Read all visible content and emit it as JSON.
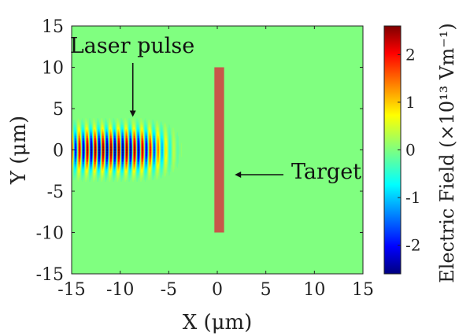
{
  "chart_data": {
    "type": "heatmap",
    "title": "",
    "xlabel": "X (μm)",
    "ylabel": "Y (μm)",
    "xlim": [
      -15,
      15
    ],
    "ylim": [
      -15,
      15
    ],
    "xticks": [
      -15,
      -10,
      -5,
      0,
      5,
      10,
      15
    ],
    "yticks": [
      -15,
      -10,
      -5,
      0,
      5,
      10,
      15
    ],
    "background_field_value": 0,
    "laser_pulse": {
      "x_range": [
        -15,
        -2.5
      ],
      "y_halfwidth": 5,
      "peak_field": 2.6
    },
    "target": {
      "x_range": [
        -0.3,
        0.7
      ],
      "y_range": [
        -10,
        10
      ],
      "color": "#c8574a"
    },
    "annotations": [
      {
        "text": "Laser pulse",
        "arrow_to": [
          -8.7,
          4
        ]
      },
      {
        "text": "Target",
        "arrow_to": [
          1.8,
          -3
        ]
      }
    ],
    "colorbar": {
      "label": "Electric Field (×10¹³ Vm⁻¹)",
      "range": [
        -2.6,
        2.6
      ],
      "ticks": [
        -2,
        -1,
        0,
        1,
        2
      ],
      "colormap": "jet"
    }
  }
}
